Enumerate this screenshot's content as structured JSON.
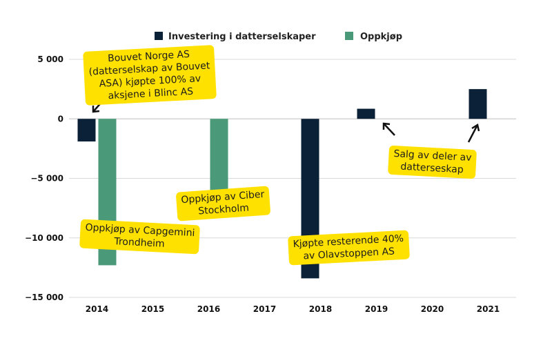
{
  "chart_data": {
    "type": "bar",
    "title": "",
    "xlabel": "",
    "ylabel": "",
    "categories": [
      "2014",
      "2015",
      "2016",
      "2017",
      "2018",
      "2019",
      "2020",
      "2021"
    ],
    "series": [
      {
        "name": "Investering i datterselskaper",
        "color": "#0b2137",
        "values": [
          -1900,
          0,
          0,
          0,
          -13400,
          850,
          0,
          2500
        ]
      },
      {
        "name": "Oppkjøp",
        "color": "#4a9a79",
        "values": [
          -12300,
          0,
          -6300,
          0,
          0,
          0,
          0,
          0
        ]
      }
    ],
    "ylim": [
      -15000,
      5000
    ],
    "yticks": [
      5000,
      0,
      -5000,
      -10000,
      -15000
    ],
    "ytick_labels": [
      "5 000",
      "0",
      "−5 000",
      "−10 000",
      "−15 000"
    ],
    "grid": true,
    "legend_position": "top",
    "annotation_color": "#ffe100",
    "annotations": [
      {
        "lines": [
          "Bouvet Norge AS",
          "(datterselskap av Bouvet",
          "ASA) kjøpte 100% av",
          "aksjene i Blinc AS"
        ]
      },
      {
        "lines": [
          "Oppkjøp av Capgemini",
          "Trondheim"
        ]
      },
      {
        "lines": [
          "Oppkjøp av Ciber",
          "Stockholm"
        ]
      },
      {
        "lines": [
          "Kjøpte resterende 40%",
          "av Olavstoppen AS"
        ]
      },
      {
        "lines": [
          "Salg av deler av",
          "datterseskap"
        ]
      }
    ]
  }
}
